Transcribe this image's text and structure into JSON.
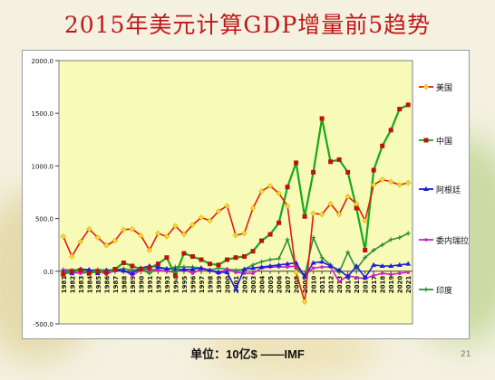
{
  "slide": {
    "title": "2015年美元计算GDP增量前5趋势",
    "footer": "单位：10亿$  ——IMF",
    "page_number": "21"
  },
  "chart_data": {
    "type": "line",
    "title": "",
    "xlabel": "",
    "ylabel": "",
    "ylim": [
      -500,
      2000
    ],
    "yticks": [
      -500,
      0,
      500,
      1000,
      1500,
      2000
    ],
    "ytick_labels": [
      "-500.0",
      "0.0",
      "500.0",
      "1000.0",
      "1500.0",
      "2000.0"
    ],
    "grid": false,
    "legend_position": "right",
    "plot_background": "#f8fbb8",
    "x": [
      "1981",
      "1982",
      "1983",
      "1984",
      "1985",
      "1986",
      "1987",
      "1988",
      "1989",
      "1990",
      "1991",
      "1992",
      "1993",
      "1994",
      "1995",
      "1996",
      "1997",
      "1998",
      "1999",
      "2000",
      "2001",
      "2002",
      "2003",
      "2004",
      "2005",
      "2006",
      "2007",
      "2008",
      "2009",
      "2010",
      "2011",
      "2012",
      "2013",
      "2014",
      "2015",
      "2016",
      "2017",
      "2018",
      "2019",
      "2020",
      "2021"
    ],
    "series": [
      {
        "name": "美国",
        "color": "#e8180c",
        "marker": "diamond",
        "marker_color": "#f4d72a",
        "values": [
          330,
          140,
          280,
          400,
          320,
          245,
          290,
          395,
          400,
          340,
          200,
          360,
          330,
          430,
          350,
          440,
          510,
          480,
          570,
          620,
          340,
          360,
          600,
          760,
          810,
          740,
          620,
          -10,
          -290,
          550,
          540,
          640,
          540,
          710,
          640,
          480,
          820,
          870,
          850,
          820,
          840
        ]
      },
      {
        "name": "中国",
        "color": "#18a818",
        "marker": "square",
        "marker_color": "#c01010",
        "values": [
          -30,
          0,
          10,
          -20,
          0,
          -10,
          20,
          80,
          50,
          20,
          30,
          70,
          130,
          -40,
          170,
          140,
          110,
          70,
          60,
          110,
          130,
          140,
          190,
          290,
          350,
          460,
          800,
          1030,
          520,
          940,
          1450,
          1040,
          1060,
          940,
          600,
          200,
          960,
          1190,
          1340,
          1540,
          1580
        ]
      },
      {
        "name": "阿根廷",
        "color": "#1c1ce0",
        "marker": "triangle",
        "marker_color": "#1c1ce0",
        "values": [
          -10,
          -20,
          20,
          15,
          -20,
          10,
          10,
          5,
          -20,
          30,
          50,
          40,
          25,
          20,
          15,
          20,
          30,
          10,
          -10,
          -10,
          -170,
          20,
          30,
          40,
          50,
          60,
          70,
          80,
          -50,
          80,
          90,
          50,
          10,
          -50,
          50,
          -60,
          60,
          50,
          50,
          60,
          70
        ]
      },
      {
        "name": "委内瑞拉",
        "color": "#cc20cc",
        "marker": "dot",
        "marker_color": "#cc20cc",
        "values": [
          10,
          -10,
          -20,
          -10,
          5,
          -30,
          10,
          10,
          -40,
          10,
          20,
          10,
          0,
          -10,
          20,
          -20,
          20,
          10,
          -20,
          20,
          -10,
          -20,
          -20,
          30,
          40,
          40,
          40,
          50,
          -40,
          30,
          40,
          40,
          -100,
          -40,
          -60,
          -70,
          -40,
          -20,
          -30,
          -20,
          -10
        ]
      },
      {
        "name": "印度",
        "color": "#2f8d3a",
        "marker": "plus",
        "marker_color": "#2f8d3a",
        "values": [
          15,
          10,
          20,
          10,
          15,
          10,
          15,
          25,
          10,
          20,
          -20,
          30,
          20,
          40,
          40,
          40,
          30,
          10,
          30,
          20,
          10,
          20,
          60,
          90,
          110,
          120,
          300,
          30,
          -50,
          320,
          130,
          60,
          -10,
          180,
          20,
          130,
          200,
          250,
          300,
          320,
          360
        ]
      }
    ]
  }
}
